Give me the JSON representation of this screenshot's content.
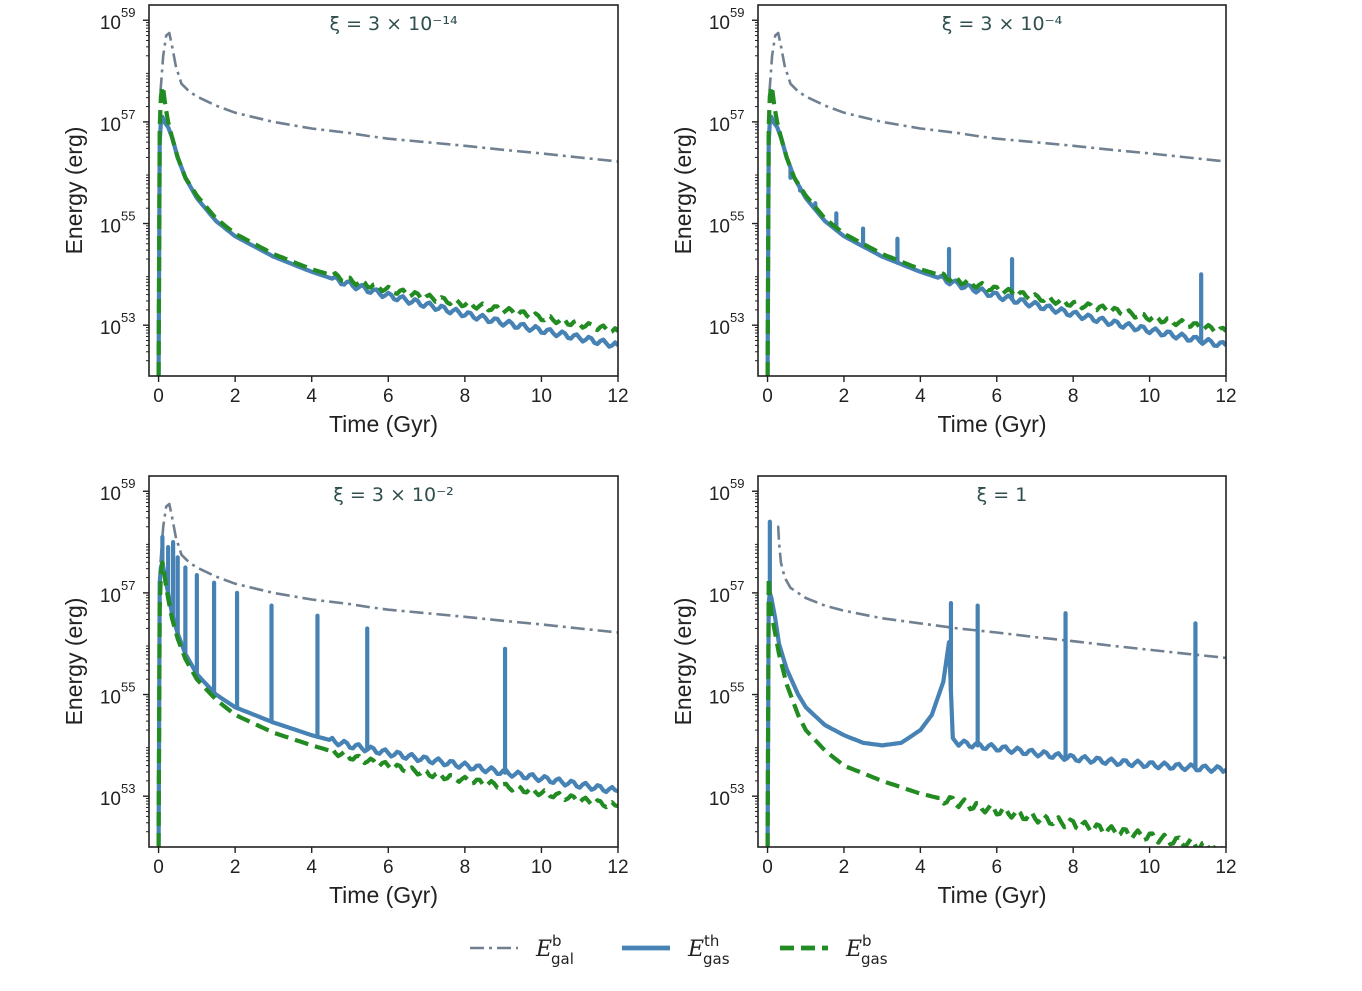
{
  "colors": {
    "E_gal_b": "#708090",
    "E_gas_th": "#4682b4",
    "E_gas_b": "#228b22",
    "axes": "#222222",
    "title": "#2f4f4f"
  },
  "legend": [
    {
      "key": "E_gal_b",
      "sym": "E",
      "sub": "gal",
      "sup": "b",
      "style": "dashdot"
    },
    {
      "key": "E_gas_th",
      "sym": "E",
      "sub": "gas",
      "sup": "th",
      "style": "solid"
    },
    {
      "key": "E_gas_b",
      "sym": "E",
      "sub": "gas",
      "sup": "b",
      "style": "dashed"
    }
  ],
  "chart_data": [
    {
      "type": "line",
      "title": "ξ = 3 × 10⁻¹⁴",
      "xlabel": "Time (Gyr)",
      "ylabel": "Energy (erg)",
      "xlim": [
        -0.25,
        12
      ],
      "ylim_log10": [
        52,
        59.3
      ],
      "xticks": [
        "0",
        "2",
        "4",
        "6",
        "8",
        "10",
        "12"
      ],
      "yticks": [
        {
          "base": "10",
          "exp": "59"
        },
        {
          "base": "10",
          "exp": "57"
        },
        {
          "base": "10",
          "exp": "55"
        },
        {
          "base": "10",
          "exp": "53"
        }
      ],
      "series": [
        {
          "name": "E_gal_b",
          "x": [
            0.05,
            0.12,
            0.2,
            0.28,
            0.35,
            0.45,
            0.6,
            0.8,
            1.0,
            1.5,
            2.0,
            3.0,
            4.0,
            5.0,
            5.5,
            6.0,
            7.0,
            8.0,
            9.0,
            10.0,
            11.0,
            12.0
          ],
          "log10": [
            57.6,
            58.3,
            58.7,
            58.75,
            58.5,
            58.1,
            57.75,
            57.6,
            57.5,
            57.32,
            57.18,
            57.0,
            56.87,
            56.78,
            56.72,
            56.67,
            56.6,
            56.53,
            56.45,
            56.38,
            56.3,
            56.22
          ]
        },
        {
          "name": "E_gas_th",
          "x": [
            0.0,
            0.03,
            0.06,
            0.1,
            0.15,
            0.25,
            0.35,
            0.5,
            0.7,
            1.0,
            1.5,
            2.0,
            3.0,
            4.0,
            5.0,
            6.0,
            7.0,
            8.0,
            9.0,
            10.0,
            11.0,
            12.0
          ],
          "log10": [
            52.0,
            56.6,
            57.0,
            57.1,
            57.0,
            56.9,
            56.7,
            56.3,
            55.9,
            55.5,
            55.05,
            54.75,
            54.35,
            54.05,
            53.8,
            53.58,
            53.4,
            53.22,
            53.05,
            52.9,
            52.75,
            52.6
          ]
        },
        {
          "name": "E_gas_b",
          "x": [
            0.0,
            0.03,
            0.06,
            0.1,
            0.13,
            0.18,
            0.25,
            0.35,
            0.5,
            0.7,
            1.0,
            1.5,
            2.0,
            3.0,
            4.0,
            5.0,
            6.0,
            7.0,
            8.0,
            9.0,
            10.0,
            11.0,
            12.0
          ],
          "log10": [
            52.0,
            56.9,
            57.5,
            57.7,
            57.6,
            57.3,
            57.0,
            56.7,
            56.3,
            55.9,
            55.55,
            55.1,
            54.8,
            54.4,
            54.1,
            53.88,
            53.7,
            53.55,
            53.42,
            53.3,
            53.15,
            53.02,
            52.88
          ]
        }
      ]
    },
    {
      "type": "line",
      "title": "ξ = 3 × 10⁻⁴",
      "xlabel": "Time (Gyr)",
      "ylabel": "Energy (erg)",
      "xlim": [
        -0.25,
        12
      ],
      "ylim_log10": [
        52,
        59.3
      ],
      "xticks": [
        "0",
        "2",
        "4",
        "6",
        "8",
        "10",
        "12"
      ],
      "yticks": [
        {
          "base": "10",
          "exp": "59"
        },
        {
          "base": "10",
          "exp": "57"
        },
        {
          "base": "10",
          "exp": "55"
        },
        {
          "base": "10",
          "exp": "53"
        }
      ],
      "series": [
        {
          "name": "E_gal_b",
          "x": [
            0.05,
            0.12,
            0.2,
            0.28,
            0.35,
            0.45,
            0.6,
            0.8,
            1.0,
            1.5,
            2.0,
            3.0,
            4.0,
            5.0,
            5.5,
            6.0,
            7.0,
            8.0,
            9.0,
            10.0,
            11.0,
            12.0
          ],
          "log10": [
            57.6,
            58.3,
            58.7,
            58.75,
            58.5,
            58.1,
            57.75,
            57.6,
            57.5,
            57.32,
            57.18,
            57.0,
            56.87,
            56.78,
            56.72,
            56.67,
            56.6,
            56.53,
            56.45,
            56.38,
            56.3,
            56.22
          ]
        },
        {
          "name": "E_gas_th",
          "x": [
            0.0,
            0.03,
            0.06,
            0.1,
            0.15,
            0.25,
            0.35,
            0.5,
            0.7,
            1.0,
            1.5,
            2.0,
            3.0,
            4.0,
            5.0,
            6.0,
            7.0,
            8.0,
            9.0,
            10.0,
            11.0,
            12.0
          ],
          "log10": [
            52.0,
            56.6,
            57.0,
            57.1,
            57.0,
            56.9,
            56.7,
            56.3,
            55.9,
            55.5,
            55.05,
            54.75,
            54.35,
            54.05,
            53.8,
            53.58,
            53.4,
            53.22,
            53.05,
            52.9,
            52.75,
            52.6
          ],
          "spikes": [
            {
              "x": 0.6,
              "log10": 55.9
            },
            {
              "x": 0.85,
              "log10": 55.65
            },
            {
              "x": 1.25,
              "log10": 55.4
            },
            {
              "x": 1.8,
              "log10": 55.2
            },
            {
              "x": 2.5,
              "log10": 54.9
            },
            {
              "x": 3.4,
              "log10": 54.7
            },
            {
              "x": 4.75,
              "log10": 54.5
            },
            {
              "x": 6.4,
              "log10": 54.3
            },
            {
              "x": 11.35,
              "log10": 54.0
            }
          ]
        },
        {
          "name": "E_gas_b",
          "x": [
            0.0,
            0.03,
            0.06,
            0.1,
            0.13,
            0.18,
            0.25,
            0.35,
            0.5,
            0.7,
            1.0,
            1.5,
            2.0,
            3.0,
            4.0,
            5.0,
            6.0,
            7.0,
            8.0,
            9.0,
            10.0,
            11.0,
            12.0
          ],
          "log10": [
            52.0,
            56.9,
            57.5,
            57.7,
            57.6,
            57.3,
            57.0,
            56.7,
            56.3,
            55.9,
            55.55,
            55.1,
            54.8,
            54.4,
            54.1,
            53.88,
            53.7,
            53.55,
            53.42,
            53.3,
            53.15,
            53.02,
            52.88
          ]
        }
      ]
    },
    {
      "type": "line",
      "title": "ξ = 3 × 10⁻²",
      "xlabel": "Time (Gyr)",
      "ylabel": "Energy (erg)",
      "xlim": [
        -0.25,
        12
      ],
      "ylim_log10": [
        52,
        59.3
      ],
      "xticks": [
        "0",
        "2",
        "4",
        "6",
        "8",
        "10",
        "12"
      ],
      "yticks": [
        {
          "base": "10",
          "exp": "59"
        },
        {
          "base": "10",
          "exp": "57"
        },
        {
          "base": "10",
          "exp": "55"
        },
        {
          "base": "10",
          "exp": "53"
        }
      ],
      "series": [
        {
          "name": "E_gal_b",
          "x": [
            0.05,
            0.12,
            0.2,
            0.28,
            0.35,
            0.45,
            0.6,
            0.8,
            1.0,
            1.5,
            2.0,
            3.0,
            4.0,
            5.0,
            5.5,
            6.0,
            7.0,
            8.0,
            9.0,
            10.0,
            11.0,
            12.0
          ],
          "log10": [
            57.6,
            58.3,
            58.7,
            58.75,
            58.5,
            58.1,
            57.75,
            57.6,
            57.5,
            57.32,
            57.18,
            57.0,
            56.87,
            56.78,
            56.72,
            56.67,
            56.6,
            56.53,
            56.45,
            56.38,
            56.3,
            56.22
          ]
        },
        {
          "name": "E_gas_th",
          "x": [
            0.0,
            0.03,
            0.06,
            0.1,
            0.15,
            0.25,
            0.35,
            0.5,
            0.7,
            1.0,
            1.5,
            2.0,
            3.0,
            4.0,
            5.0,
            6.0,
            7.0,
            8.0,
            9.0,
            10.0,
            11.0,
            12.0
          ],
          "log10": [
            52.0,
            57.2,
            57.5,
            57.6,
            57.4,
            57.0,
            56.6,
            56.2,
            55.8,
            55.4,
            55.0,
            54.75,
            54.45,
            54.2,
            54.0,
            53.85,
            53.72,
            53.6,
            53.47,
            53.35,
            53.22,
            53.1
          ],
          "spikes": [
            {
              "x": 0.1,
              "log10": 58.1
            },
            {
              "x": 0.25,
              "log10": 57.9
            },
            {
              "x": 0.38,
              "log10": 58.0
            },
            {
              "x": 0.5,
              "log10": 57.7
            },
            {
              "x": 0.7,
              "log10": 57.5
            },
            {
              "x": 1.0,
              "log10": 57.35
            },
            {
              "x": 1.45,
              "log10": 57.2
            },
            {
              "x": 2.05,
              "log10": 57.0
            },
            {
              "x": 2.95,
              "log10": 56.75
            },
            {
              "x": 4.15,
              "log10": 56.55
            },
            {
              "x": 5.45,
              "log10": 56.3
            },
            {
              "x": 9.05,
              "log10": 55.9
            }
          ]
        },
        {
          "name": "E_gas_b",
          "x": [
            0.0,
            0.03,
            0.06,
            0.1,
            0.13,
            0.18,
            0.25,
            0.35,
            0.5,
            0.7,
            1.0,
            1.5,
            2.0,
            3.0,
            4.0,
            5.0,
            6.0,
            7.0,
            8.0,
            9.0,
            10.0,
            11.0,
            12.0
          ],
          "log10": [
            52.0,
            56.7,
            57.4,
            57.6,
            57.5,
            57.2,
            56.9,
            56.5,
            56.1,
            55.7,
            55.3,
            54.9,
            54.6,
            54.25,
            54.0,
            53.78,
            53.6,
            53.45,
            53.32,
            53.2,
            53.07,
            52.93,
            52.8
          ]
        }
      ]
    },
    {
      "type": "line",
      "title": "ξ = 1",
      "xlabel": "Time (Gyr)",
      "ylabel": "Energy (erg)",
      "xlim": [
        -0.25,
        12
      ],
      "ylim_log10": [
        52,
        59.3
      ],
      "xticks": [
        "0",
        "2",
        "4",
        "6",
        "8",
        "10",
        "12"
      ],
      "yticks": [
        {
          "base": "10",
          "exp": "59"
        },
        {
          "base": "10",
          "exp": "57"
        },
        {
          "base": "10",
          "exp": "55"
        },
        {
          "base": "10",
          "exp": "53"
        }
      ],
      "series": [
        {
          "name": "E_gal_b",
          "x": [
            0.25,
            0.28,
            0.3,
            0.35,
            0.45,
            0.6,
            0.8,
            1.0,
            1.5,
            2.0,
            3.0,
            4.0,
            5.0,
            6.0,
            7.0,
            8.0,
            9.0,
            10.0,
            11.0,
            12.0
          ],
          "log10": [
            58.3,
            58.3,
            58.0,
            57.6,
            57.3,
            57.1,
            57.0,
            56.9,
            56.75,
            56.65,
            56.5,
            56.4,
            56.3,
            56.22,
            56.13,
            56.05,
            55.96,
            55.88,
            55.8,
            55.72
          ]
        },
        {
          "name": "E_gas_th",
          "x": [
            0.0,
            0.03,
            0.06,
            0.1,
            0.15,
            0.2,
            0.3,
            0.5,
            0.8,
            1.0,
            1.5,
            2.0,
            2.5,
            3.0,
            3.5,
            4.0,
            4.3,
            4.6,
            4.75,
            4.85,
            5.0,
            5.5,
            6.0,
            7.0,
            8.0,
            9.0,
            10.0,
            11.0,
            12.0
          ],
          "log10": [
            52.0,
            56.8,
            57.0,
            56.9,
            56.7,
            56.5,
            56.0,
            55.5,
            55.0,
            54.75,
            54.4,
            54.2,
            54.05,
            54.0,
            54.05,
            54.3,
            54.6,
            55.3,
            56.0,
            54.1,
            54.05,
            54.0,
            53.95,
            53.85,
            53.75,
            53.68,
            53.62,
            53.57,
            53.52
          ],
          "spikes": [
            {
              "x": 0.06,
              "log10": 58.4
            },
            {
              "x": 4.8,
              "log10": 56.8
            },
            {
              "x": 5.5,
              "log10": 56.75
            },
            {
              "x": 7.8,
              "log10": 56.6
            },
            {
              "x": 11.2,
              "log10": 56.4
            }
          ]
        },
        {
          "name": "E_gas_b",
          "x": [
            0.0,
            0.03,
            0.06,
            0.1,
            0.15,
            0.2,
            0.3,
            0.5,
            0.8,
            1.0,
            1.5,
            2.0,
            3.0,
            4.0,
            5.0,
            6.0,
            7.0,
            8.0,
            9.0,
            10.0,
            11.0,
            12.0
          ],
          "log10": [
            52.0,
            57.3,
            56.9,
            56.6,
            56.4,
            56.2,
            55.8,
            55.2,
            54.6,
            54.3,
            53.9,
            53.6,
            53.3,
            53.05,
            52.87,
            52.72,
            52.58,
            52.45,
            52.32,
            52.2,
            52.08,
            51.95
          ]
        }
      ]
    }
  ]
}
